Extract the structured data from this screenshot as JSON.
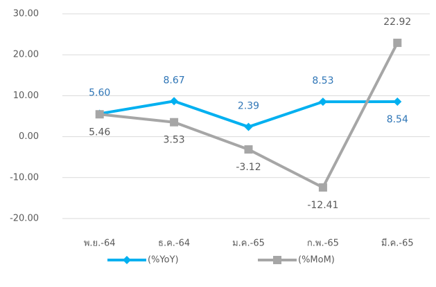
{
  "chart_data": {
    "type": "line",
    "categories": [
      "พ.ย.-64",
      "ธ.ค.-64",
      "ม.ค.-65",
      "ก.พ.-65",
      "มี.ค.-65"
    ],
    "series": [
      {
        "name": "(%YoY)",
        "color": "#00b0f0",
        "label_color": "#2e75b6",
        "marker": "diamond",
        "values": [
          5.6,
          8.67,
          2.39,
          8.53,
          8.54
        ],
        "value_labels": [
          "5.60",
          "8.67",
          "2.39",
          "8.53",
          "8.54"
        ]
      },
      {
        "name": "(%MoM)",
        "color": "#a6a6a6",
        "label_color": "#595959",
        "marker": "square",
        "values": [
          5.46,
          3.53,
          -3.12,
          -12.41,
          22.92
        ],
        "value_labels": [
          "5.46",
          "3.53",
          "-3.12",
          "-12.41",
          "22.92"
        ]
      }
    ],
    "ylim": [
      -20,
      30
    ],
    "yticks": [
      {
        "value": -20,
        "label": "-20.00"
      },
      {
        "value": -10,
        "label": "-10.00"
      },
      {
        "value": 0,
        "label": "0.00"
      },
      {
        "value": 10,
        "label": "10.00"
      },
      {
        "value": 20,
        "label": "20.00"
      },
      {
        "value": 30,
        "label": "30.00"
      }
    ],
    "grid": true,
    "legend": "bottom"
  }
}
